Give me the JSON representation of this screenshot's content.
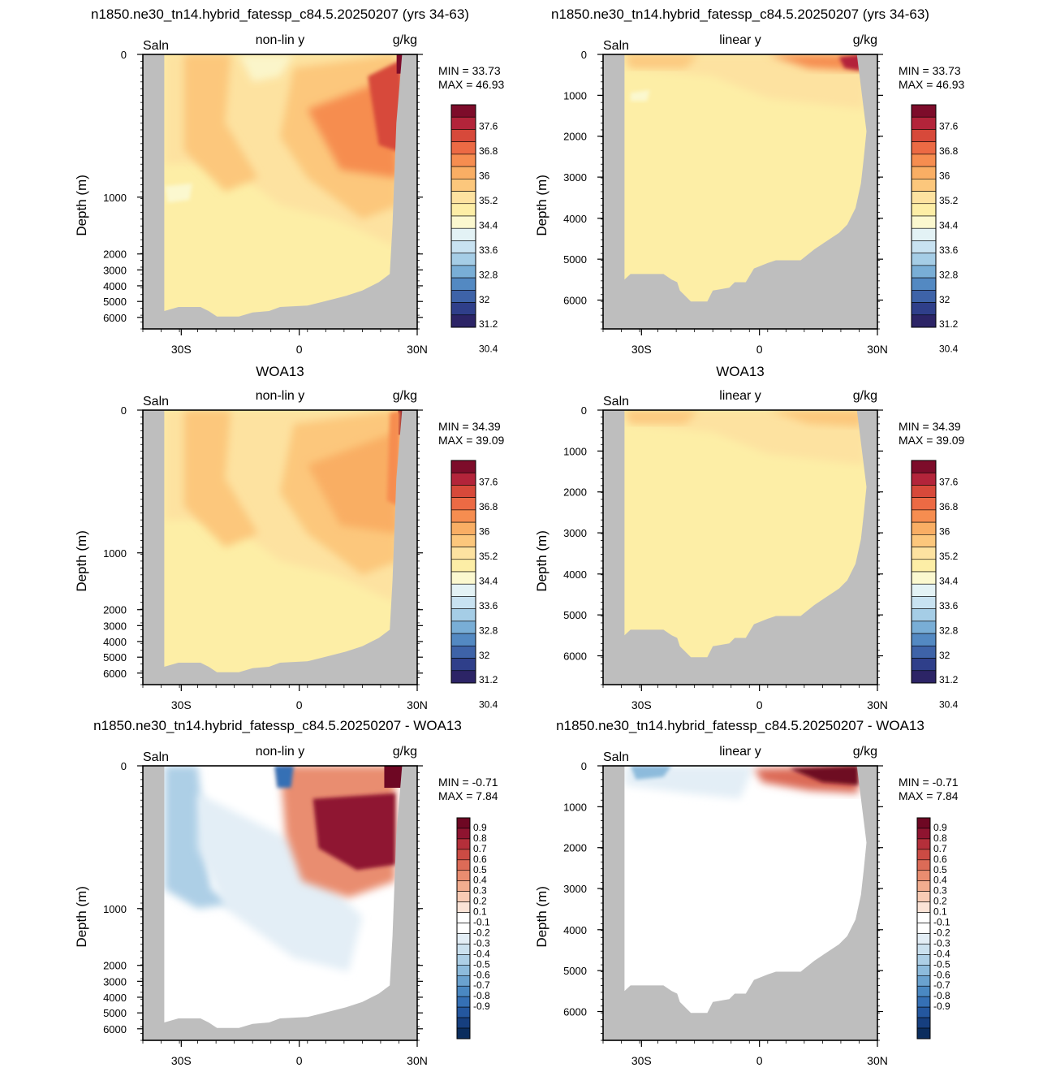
{
  "rows": [
    {
      "title": "n1850.ne30_tn14.hybrid_fatessp_c84.5.20250207 (yrs 34-63)"
    },
    {
      "title": "WOA13"
    },
    {
      "title": "n1850.ne30_tn14.hybrid_fatessp_c84.5.20250207 - WOA13"
    }
  ],
  "colors": {
    "land": "#bebebe",
    "salinity_palette": [
      "#2c2466",
      "#2f3f8a",
      "#3e63a8",
      "#5389c2",
      "#79aed6",
      "#a5cde6",
      "#c8e2f1",
      "#e3f2f5",
      "#fbf8cf",
      "#fdeea6",
      "#fde2a0",
      "#fcc77c",
      "#f9ae64",
      "#f68d50",
      "#ec6a44",
      "#d7493a",
      "#b3243a",
      "#7d0c2a"
    ],
    "difference_palette": [
      "#0b2d5e",
      "#163f7f",
      "#24579f",
      "#3570b5",
      "#4a88c2",
      "#6aa2cf",
      "#8dbbdc",
      "#adcfe6",
      "#cbe1ef",
      "#e3eef6",
      "#ffffff",
      "#ffffff",
      "#fbe3d6",
      "#f8cbb4",
      "#f2ad8f",
      "#e98d70",
      "#dc6b57",
      "#cc4b44",
      "#b42f3a",
      "#8f1430",
      "#6e0723"
    ]
  },
  "chart_data": [
    {
      "type": "heatmap",
      "panel": "model-nonlin",
      "variable": "Saln",
      "subtitle": "non-lin y",
      "units": "g/kg",
      "ylabel": "Depth (m)",
      "y_scale": "non-linear",
      "ylim": [
        0,
        6700
      ],
      "xlim": [
        -45,
        30
      ],
      "x_ticks": [
        "30S",
        "0",
        "30N"
      ],
      "y_ticks": [
        "0",
        "1000",
        "2000",
        "3000",
        "4000",
        "5000",
        "6000"
      ],
      "min_label": "MIN =  33.73",
      "max_label": "MAX =  46.93",
      "colorbar_labels": [
        "37.6",
        "36.8",
        "36",
        "35.2",
        "34.4",
        "33.6",
        "32.8",
        "32",
        "31.2",
        "30.4"
      ]
    },
    {
      "type": "heatmap",
      "panel": "model-linear",
      "variable": "Saln",
      "subtitle": "linear y",
      "units": "g/kg",
      "ylabel": "Depth (m)",
      "y_scale": "linear",
      "ylim": [
        0,
        6700
      ],
      "xlim": [
        -45,
        30
      ],
      "x_ticks": [
        "30S",
        "0",
        "30N"
      ],
      "y_ticks": [
        "0",
        "1000",
        "2000",
        "3000",
        "4000",
        "5000",
        "6000"
      ],
      "min_label": "MIN =  33.73",
      "max_label": "MAX =  46.93",
      "colorbar_labels": [
        "37.6",
        "36.8",
        "36",
        "35.2",
        "34.4",
        "33.6",
        "32.8",
        "32",
        "31.2",
        "30.4"
      ]
    },
    {
      "type": "heatmap",
      "panel": "obs-nonlin",
      "variable": "Saln",
      "subtitle": "non-lin y",
      "units": "g/kg",
      "ylabel": "Depth (m)",
      "y_scale": "non-linear",
      "ylim": [
        0,
        6700
      ],
      "xlim": [
        -45,
        30
      ],
      "x_ticks": [
        "30S",
        "0",
        "30N"
      ],
      "y_ticks": [
        "0",
        "1000",
        "2000",
        "3000",
        "4000",
        "5000",
        "6000"
      ],
      "min_label": "MIN =  34.39",
      "max_label": "MAX =  39.09",
      "colorbar_labels": [
        "37.6",
        "36.8",
        "36",
        "35.2",
        "34.4",
        "33.6",
        "32.8",
        "32",
        "31.2",
        "30.4"
      ]
    },
    {
      "type": "heatmap",
      "panel": "obs-linear",
      "variable": "Saln",
      "subtitle": "linear y",
      "units": "g/kg",
      "ylabel": "Depth (m)",
      "y_scale": "linear",
      "ylim": [
        0,
        6700
      ],
      "xlim": [
        -45,
        30
      ],
      "x_ticks": [
        "30S",
        "0",
        "30N"
      ],
      "y_ticks": [
        "0",
        "1000",
        "2000",
        "3000",
        "4000",
        "5000",
        "6000"
      ],
      "min_label": "MIN =  34.39",
      "max_label": "MAX =  39.09",
      "colorbar_labels": [
        "37.6",
        "36.8",
        "36",
        "35.2",
        "34.4",
        "33.6",
        "32.8",
        "32",
        "31.2",
        "30.4"
      ]
    },
    {
      "type": "heatmap",
      "panel": "diff-nonlin",
      "variable": "Saln",
      "subtitle": "non-lin y",
      "units": "g/kg",
      "ylabel": "Depth (m)",
      "y_scale": "non-linear",
      "ylim": [
        0,
        6700
      ],
      "xlim": [
        -45,
        30
      ],
      "x_ticks": [
        "30S",
        "0",
        "30N"
      ],
      "y_ticks": [
        "0",
        "1000",
        "2000",
        "3000",
        "4000",
        "5000",
        "6000"
      ],
      "min_label": "MIN =  -0.71",
      "max_label": "MAX =   7.84",
      "colorbar_labels": [
        "0.9",
        "0.8",
        "0.7",
        "0.6",
        "0.5",
        "0.4",
        "0.3",
        "0.2",
        "0.1",
        "-0.1",
        "-0.2",
        "-0.3",
        "-0.4",
        "-0.5",
        "-0.6",
        "-0.7",
        "-0.8",
        "-0.9"
      ]
    },
    {
      "type": "heatmap",
      "panel": "diff-linear",
      "variable": "Saln",
      "subtitle": "linear y",
      "units": "g/kg",
      "ylabel": "Depth (m)",
      "y_scale": "linear",
      "ylim": [
        0,
        6700
      ],
      "xlim": [
        -45,
        30
      ],
      "x_ticks": [
        "30S",
        "0",
        "30N"
      ],
      "y_ticks": [
        "0",
        "1000",
        "2000",
        "3000",
        "4000",
        "5000",
        "6000"
      ],
      "min_label": "MIN =  -0.71",
      "max_label": "MAX =   7.84",
      "colorbar_labels": [
        "0.9",
        "0.8",
        "0.7",
        "0.6",
        "0.5",
        "0.4",
        "0.3",
        "0.2",
        "0.1",
        "-0.1",
        "-0.2",
        "-0.3",
        "-0.4",
        "-0.5",
        "-0.6",
        "-0.7",
        "-0.8",
        "-0.9"
      ]
    }
  ]
}
